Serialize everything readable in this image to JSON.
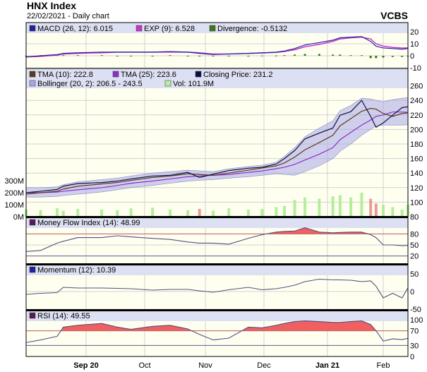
{
  "header": {
    "title": "HNX Index",
    "subtitle": "22/02/2021 - Daily chart",
    "brand": "VCBS"
  },
  "colors": {
    "plot_bg": "#fffff0",
    "legend_bg": "#dde0f2",
    "grid": "#d0d0d0",
    "macd": "#2222a0",
    "signal": "#cc33cc",
    "divergence": "#3a7a1a",
    "tma10": "#5a3a20",
    "tma25": "#8a30c8",
    "close": "#101040",
    "bollinger": "#a8a8e8",
    "vol_up": "#b4ee9c",
    "vol_down": "#e89c98",
    "oscillator": "#505080",
    "overbought_fill": "#f06060",
    "level_line": "#c06060",
    "low_line": "#6060a0"
  },
  "chart_data": {
    "type": "line",
    "x_ticks": [
      {
        "label": "Sep 20",
        "date": "2020-09-01",
        "bold": true
      },
      {
        "label": "Oct",
        "date": "2020-10-01",
        "bold": false
      },
      {
        "label": "Nov",
        "date": "2020-11-01",
        "bold": false
      },
      {
        "label": "Dec",
        "date": "2020-12-01",
        "bold": false
      },
      {
        "label": "Jan 21",
        "date": "2021-01-01",
        "bold": true
      },
      {
        "label": "Feb",
        "date": "2021-02-01",
        "bold": false
      }
    ],
    "x": [
      "2020-08-03",
      "2020-08-10",
      "2020-08-18",
      "2020-08-21",
      "2020-08-28",
      "2020-09-09",
      "2020-09-17",
      "2020-09-24",
      "2020-10-05",
      "2020-10-14",
      "2020-10-23",
      "2020-10-29",
      "2020-11-05",
      "2020-11-13",
      "2020-11-23",
      "2020-11-30",
      "2020-12-07",
      "2020-12-11",
      "2020-12-16",
      "2020-12-21",
      "2020-12-28",
      "2021-01-04",
      "2021-01-08",
      "2021-01-14",
      "2021-01-20",
      "2021-01-25",
      "2021-01-28",
      "2021-02-01",
      "2021-02-09",
      "2021-02-17",
      "2021-02-22"
    ],
    "macd_panel": {
      "legend": [
        "MACD (26, 12): 6.015",
        "EXP (9): 6.528",
        "Divergence: -0.5132"
      ],
      "y_ticks": [
        "20",
        "10",
        "0",
        "-10"
      ],
      "y_tick_values": [
        20,
        10,
        0,
        -10
      ],
      "macd": [
        -1,
        0,
        1,
        2,
        2.5,
        3,
        3,
        3,
        3,
        3.5,
        3,
        2,
        1,
        1.5,
        2,
        2.5,
        3,
        4,
        6,
        9,
        11,
        13,
        15,
        15.5,
        16,
        12,
        8,
        6.5,
        6,
        5.5,
        6.015
      ],
      "signal": [
        -1,
        -0.5,
        0.5,
        1.5,
        2,
        2.5,
        3,
        3,
        3,
        3,
        3,
        2.5,
        1.5,
        1.5,
        2,
        2.3,
        2.8,
        3.5,
        5,
        7.5,
        9.5,
        12,
        14,
        15,
        15.5,
        14,
        10,
        8,
        7,
        6.5,
        6.528
      ],
      "divergence": [
        0,
        0.5,
        0.5,
        0.5,
        0.5,
        0.5,
        0,
        0,
        0,
        0.5,
        0,
        -0.5,
        -0.5,
        0,
        0,
        0.2,
        0.2,
        0.5,
        1,
        1.5,
        1.5,
        1,
        1,
        0.5,
        0.5,
        -2,
        -2,
        -1.5,
        -1,
        -1,
        -0.5132
      ]
    },
    "price_panel": {
      "legend_row1": [
        "TMA (10): 222.8",
        "TMA (25): 223.6",
        "Closing Price: 231.2"
      ],
      "legend_row2": [
        "Bollinger (20, 2): 206.5 - 243.5",
        "Vol: 101.9M"
      ],
      "y_ticks": [
        "260",
        "240",
        "220",
        "200",
        "180",
        "160",
        "140",
        "120",
        "100",
        "80"
      ],
      "y_tick_values": [
        260,
        240,
        220,
        200,
        180,
        160,
        140,
        120,
        100,
        80
      ],
      "vol_ticks": [
        "300M",
        "200M",
        "100M",
        "0M"
      ],
      "vol_tick_values": [
        300,
        200,
        100,
        0
      ],
      "close": [
        113,
        115,
        117.5,
        122,
        125.6,
        127,
        129,
        132,
        136,
        137,
        141,
        134,
        138.5,
        143.5,
        146.7,
        148,
        152.5,
        160,
        171,
        187,
        195,
        202,
        219.6,
        224.5,
        240,
        218,
        203,
        209,
        219.6,
        230,
        231.2
      ],
      "tma10": [
        111,
        113,
        115,
        118,
        122,
        125,
        127,
        130,
        134,
        136,
        139,
        138,
        137,
        140,
        144,
        147,
        150,
        154,
        162,
        172,
        182,
        192,
        205,
        215,
        225,
        229,
        228,
        222,
        218,
        222,
        222.8
      ],
      "tma25": [
        113,
        113,
        114,
        115,
        117,
        120,
        123,
        126,
        129,
        132,
        135,
        136,
        137,
        138,
        141,
        143,
        146,
        148,
        152,
        158,
        166,
        175,
        186,
        196,
        206,
        213,
        218,
        220,
        224,
        224,
        223.6
      ],
      "bollinger_upper": [
        120,
        120,
        121,
        124,
        128,
        131,
        133,
        136,
        140,
        142,
        144,
        143,
        142,
        146,
        149,
        151,
        155,
        163,
        175,
        190,
        202,
        212,
        226,
        233,
        243,
        242,
        240,
        238,
        241,
        243,
        243.5
      ],
      "bollinger_lower": [
        107,
        107,
        108,
        109,
        111,
        114,
        117,
        120,
        123,
        126,
        129,
        130,
        131,
        133,
        135,
        137,
        139,
        138,
        137,
        142,
        150,
        160,
        170,
        180,
        192,
        200,
        205,
        206,
        206,
        206,
        206.5
      ],
      "volume_millions": [
        60,
        55,
        70,
        50,
        65,
        60,
        55,
        70,
        75,
        60,
        55,
        65,
        50,
        70,
        60,
        65,
        80,
        90,
        140,
        160,
        150,
        170,
        180,
        160,
        200,
        150,
        110,
        100,
        80,
        60,
        101.9
      ]
    },
    "mfi_panel": {
      "legend": "Money Flow Index (14): 48.99",
      "y_ticks": [
        "80",
        "50",
        "20"
      ],
      "y_tick_values": [
        80,
        50,
        20
      ],
      "threshold": 80,
      "low": 20,
      "values": [
        32,
        35,
        55,
        60,
        70,
        70,
        75,
        72,
        68,
        65,
        58,
        55,
        55,
        52,
        68,
        78,
        85,
        87,
        88,
        97,
        85,
        83,
        84,
        85,
        85,
        78,
        70,
        50,
        50,
        48,
        48.99
      ]
    },
    "momentum_panel": {
      "legend": "Momentum (12): 10.39",
      "y_ticks": [
        "50",
        "0",
        "-50"
      ],
      "y_tick_values": [
        50,
        0,
        -50
      ],
      "values": [
        -8,
        -5,
        -3,
        12,
        10,
        10,
        9,
        8,
        4,
        6,
        6,
        2,
        -2,
        5,
        12,
        5,
        8,
        12,
        18,
        28,
        35,
        33,
        33,
        32,
        28,
        30,
        15,
        -18,
        -5,
        -18,
        10.39
      ]
    },
    "rsi_panel": {
      "legend": "RSI (14): 49.55",
      "y_ticks": [
        "100",
        "70",
        "30",
        "0"
      ],
      "y_tick_values": [
        100,
        70,
        30,
        0
      ],
      "threshold": 70,
      "low": 30,
      "values": [
        38,
        45,
        55,
        80,
        85,
        90,
        80,
        74,
        82,
        85,
        75,
        60,
        45,
        50,
        80,
        78,
        85,
        90,
        95,
        97,
        95,
        93,
        93,
        95,
        97,
        87,
        70,
        42,
        48,
        46,
        49.55
      ]
    }
  }
}
